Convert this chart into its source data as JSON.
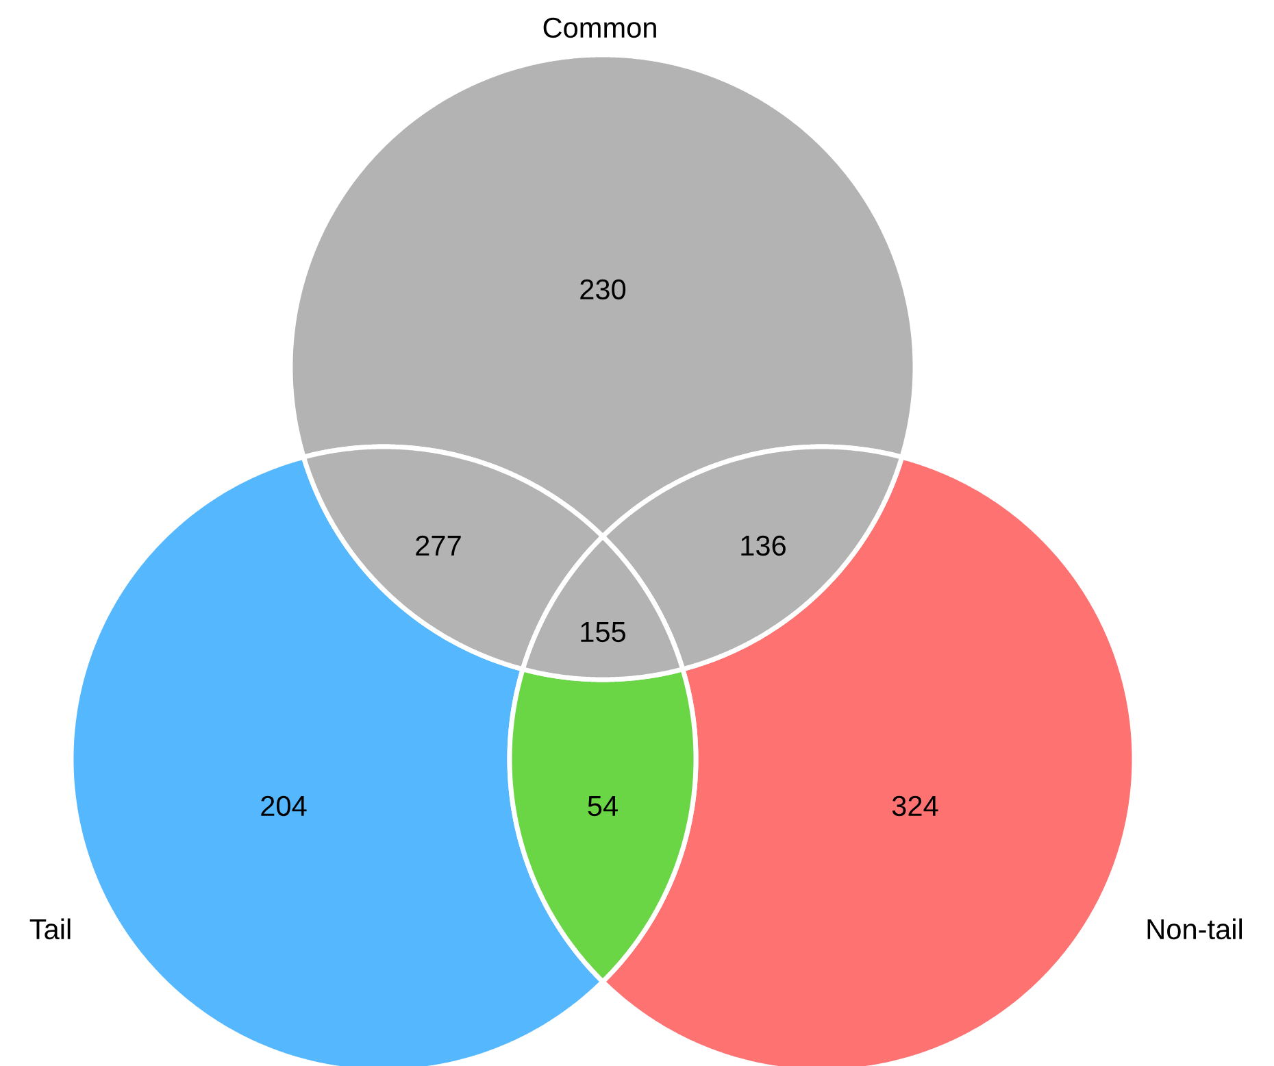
{
  "chart_data": {
    "type": "other",
    "annotations": [
      "Common",
      "Tail",
      "Non-tail"
    ],
    "categories": [
      null,
      null,
      null,
      null,
      null,
      null,
      null
    ],
    "values": [
      230,
      277,
      136,
      155,
      204,
      54,
      324
    ],
    "colors": [
      "#b3b3b3",
      "#b3b3b3",
      "#b3b3b3",
      "#b3b3b3",
      "#55b8fe",
      "#6ad646",
      "#fe7272"
    ],
    "data_labels": true
  }
}
